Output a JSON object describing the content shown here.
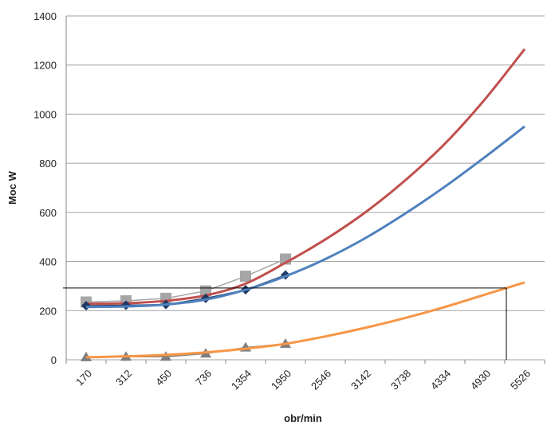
{
  "chart_data": {
    "type": "line",
    "y_label": "Moc W",
    "x_label": "obr/min",
    "categories": [
      "170",
      "312",
      "450",
      "736",
      "1354",
      "1950",
      "2546",
      "3142",
      "3738",
      "4334",
      "4930",
      "5526"
    ],
    "ylim": [
      0,
      1400
    ],
    "yticks": [
      0,
      200,
      400,
      600,
      800,
      1000,
      1200,
      1400
    ],
    "grid": true,
    "series": [
      {
        "color": "#a6a6a6",
        "marker": "square",
        "values": [
          235,
          240,
          250,
          280,
          340,
          410,
          null,
          null,
          null,
          null,
          null,
          null
        ]
      },
      {
        "color": "#c0504d",
        "marker": "none",
        "smooth": true,
        "values": [
          228,
          230,
          240,
          262,
          310,
          395,
          490,
          600,
          730,
          880,
          1060,
          1265
        ]
      },
      {
        "color": "#1f3864",
        "marker": "diamond",
        "values": [
          220,
          222,
          225,
          250,
          285,
          345,
          null,
          null,
          null,
          null,
          null,
          null
        ]
      },
      {
        "color": "#4f81bd",
        "marker": "none",
        "smooth": true,
        "values": [
          215,
          217,
          225,
          245,
          285,
          340,
          410,
          495,
          595,
          705,
          825,
          950
        ]
      },
      {
        "color": "#7f7f7f",
        "marker": "triangle",
        "values": [
          10,
          12,
          12,
          25,
          50,
          65,
          null,
          null,
          null,
          null,
          null,
          null
        ]
      },
      {
        "color": "#f79646",
        "marker": "none",
        "smooth": true,
        "values": [
          10,
          14,
          20,
          30,
          45,
          65,
          95,
          130,
          170,
          215,
          265,
          315
        ]
      }
    ],
    "reference": {
      "y": 292,
      "color": "#000000"
    }
  }
}
